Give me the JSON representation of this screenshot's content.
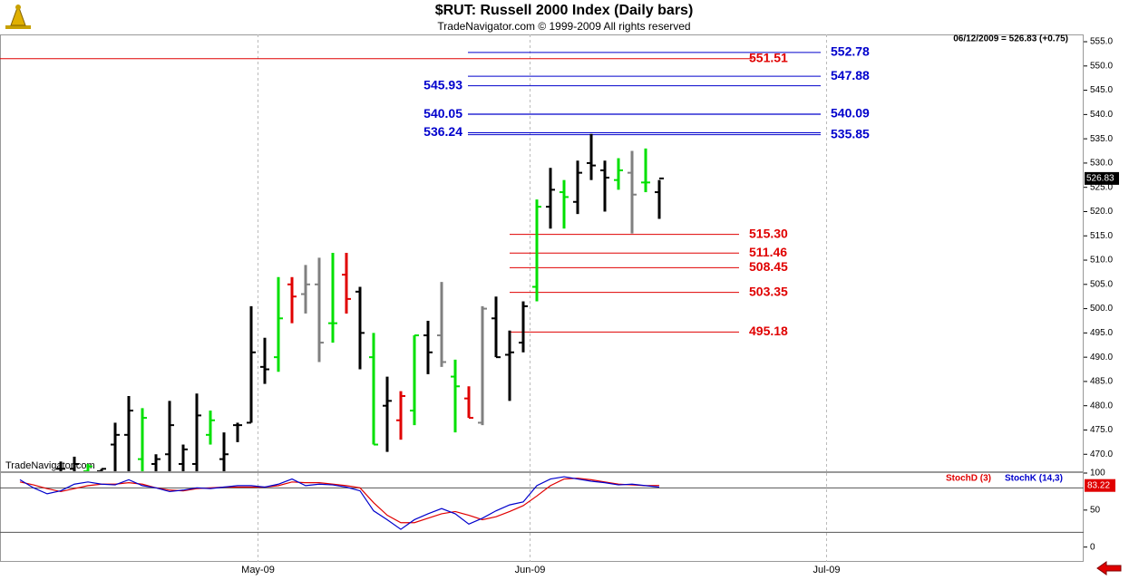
{
  "chart_data": {
    "type": "ohlc",
    "title": "$RUT:  Russell 2000 Index  (Daily bars)",
    "subtitle": "TradeNavigator.com © 1999-2009 All rights reserved",
    "header_note": "06/12/2009 = 526.83 (+0.75)",
    "watermark": "TradeNavigator.com",
    "last_value": 526.83,
    "categories": [
      null,
      null,
      null,
      null,
      null,
      null,
      null,
      null,
      null,
      null,
      null,
      null,
      null,
      null,
      null,
      null,
      null,
      null,
      null,
      null,
      null,
      null,
      null,
      null,
      null,
      null,
      null,
      null,
      null,
      null,
      null,
      null,
      null,
      null,
      null,
      null,
      null,
      null,
      null,
      null,
      null,
      null,
      null,
      null,
      null,
      null,
      null,
      null
    ],
    "xticks": [
      {
        "value": 17.5,
        "label": "May-09"
      },
      {
        "value": 37.5,
        "label": "Jun-09"
      },
      {
        "value": 59.3,
        "label": "Jul-09"
      }
    ],
    "open": [
      null,
      null,
      null,
      467,
      467,
      466.5,
      466.5,
      472,
      474,
      469,
      468,
      470,
      468,
      468,
      474,
      469,
      476,
      476.5,
      488,
      490,
      505,
      503,
      505,
      497,
      507,
      503.5,
      490,
      480,
      477,
      479,
      494.5,
      494.5,
      486,
      481.5,
      476.5,
      498,
      490.5,
      493,
      504.5,
      521,
      524,
      522,
      530,
      528.5,
      526.5,
      528,
      526,
      524
    ],
    "high": [
      null,
      null,
      null,
      468.5,
      469.5,
      468,
      467,
      476.5,
      482,
      479.5,
      470,
      481,
      472,
      482.5,
      479,
      474.5,
      476.5,
      500.5,
      494,
      506.5,
      506.5,
      509,
      510.5,
      511.5,
      511.5,
      504.5,
      495,
      486,
      483,
      494.5,
      497.5,
      505.5,
      489.5,
      484,
      500.5,
      502.5,
      495.5,
      501.5,
      522.5,
      529,
      526.5,
      530.5,
      536,
      530.5,
      531,
      532.5,
      533,
      526.5
    ],
    "low": [
      null,
      null,
      null,
      466,
      466,
      466,
      466,
      466.5,
      466.5,
      466,
      466,
      466.5,
      466,
      466,
      472,
      466,
      472.5,
      476.5,
      484.5,
      487,
      497,
      499,
      489,
      493,
      499,
      487.5,
      472,
      470.5,
      473,
      476,
      486.5,
      488,
      474.5,
      477.5,
      476,
      490,
      481,
      491,
      501.5,
      516.5,
      516.5,
      519.5,
      526.5,
      520,
      524.5,
      515.5,
      524,
      518.5
    ],
    "close": [
      null,
      null,
      null,
      467,
      468,
      467.5,
      467,
      474,
      479,
      477.5,
      469,
      476,
      471,
      478,
      477,
      470,
      476,
      491,
      487.5,
      498,
      502.5,
      505,
      493,
      497,
      502,
      495,
      472,
      481,
      482,
      494.5,
      491,
      489,
      484,
      477.5,
      500,
      490,
      491,
      500.5,
      521,
      524.5,
      523,
      528,
      529.5,
      527,
      528.5,
      523.5,
      526,
      526.83
    ],
    "colors": [
      null,
      null,
      null,
      "#000000",
      "#000000",
      "#00e000",
      "#000000",
      "#000000",
      "#000000",
      "#00e000",
      "#000000",
      "#000000",
      "#000000",
      "#000000",
      "#00e000",
      "#000000",
      "#000000",
      "#000000",
      "#000000",
      "#00e000",
      "#e00000",
      "#808080",
      "#808080",
      "#00e000",
      "#e00000",
      "#000000",
      "#00e000",
      "#000000",
      "#e00000",
      "#00e000",
      "#000000",
      "#808080",
      "#00e000",
      "#e00000",
      "#808080",
      "#000000",
      "#000000",
      "#000000",
      "#00e000",
      "#000000",
      "#00e000",
      "#000000",
      "#000000",
      "#000000",
      "#00e000",
      "#808080",
      "#00e000",
      "#000000"
    ],
    "ylim": [
      466.5,
      556.5
    ],
    "yticks": [
      {
        "value": 470,
        "label": "470.0"
      },
      {
        "value": 475,
        "label": "475.0"
      },
      {
        "value": 480,
        "label": "480.0"
      },
      {
        "value": 485,
        "label": "485.0"
      },
      {
        "value": 490,
        "label": "490.0"
      },
      {
        "value": 495,
        "label": "495.0"
      },
      {
        "value": 500,
        "label": "500.0"
      },
      {
        "value": 505,
        "label": "505.0"
      },
      {
        "value": 510,
        "label": "510.0"
      },
      {
        "value": 515,
        "label": "515.0"
      },
      {
        "value": 520,
        "label": "520.0"
      },
      {
        "value": 525,
        "label": "525.0"
      },
      {
        "value": 530,
        "label": "530.0"
      },
      {
        "value": 535,
        "label": "535.0"
      },
      {
        "value": 540,
        "label": "540.0"
      },
      {
        "value": 545,
        "label": "545.0"
      },
      {
        "value": 550,
        "label": "550.0"
      },
      {
        "value": 555,
        "label": "555.0"
      }
    ],
    "levels": [
      {
        "color": "#0000cc",
        "values": [
          552.78,
          547.88,
          545.93,
          540.05,
          540.09,
          536.24,
          535.85
        ],
        "label_side": [
          "right",
          "right",
          "left",
          "left",
          "right",
          "left",
          "right"
        ]
      },
      {
        "color": "#e00000",
        "values": [
          551.51,
          {
            "value": 515.3,
            "label": "515.30"
          },
          511.46,
          508.45,
          503.35,
          495.18
        ]
      }
    ],
    "indicator": {
      "ylim": [
        -20,
        100
      ],
      "yticks": [
        100,
        50,
        0
      ],
      "ref_lines": [
        80,
        20
      ],
      "last_value": 83.22,
      "series": [
        {
          "name": "StochD (3)",
          "color": "#e00000",
          "values": [
            88,
            84,
            79,
            75,
            79,
            83,
            85,
            85,
            87,
            85,
            80,
            77,
            76,
            79,
            80,
            81,
            81,
            81,
            81,
            83,
            88,
            87,
            87,
            85,
            83,
            80,
            60,
            43,
            33,
            33,
            39,
            45,
            48,
            43,
            37,
            41,
            48,
            56,
            69,
            83,
            92,
            93,
            91,
            88,
            85,
            84,
            83,
            83.22
          ]
        },
        {
          "name": "StochK (14,3)",
          "color": "#0000cc",
          "values": [
            91,
            80,
            72,
            76,
            85,
            88,
            85,
            84,
            91,
            83,
            80,
            75,
            77,
            80,
            79,
            81,
            83,
            83,
            81,
            85,
            92,
            83,
            85,
            84,
            81,
            76,
            49,
            37,
            24,
            37,
            45,
            52,
            45,
            31,
            39,
            49,
            57,
            61,
            83,
            92,
            95,
            92,
            89,
            87,
            84,
            85,
            83,
            81
          ]
        }
      ]
    }
  }
}
